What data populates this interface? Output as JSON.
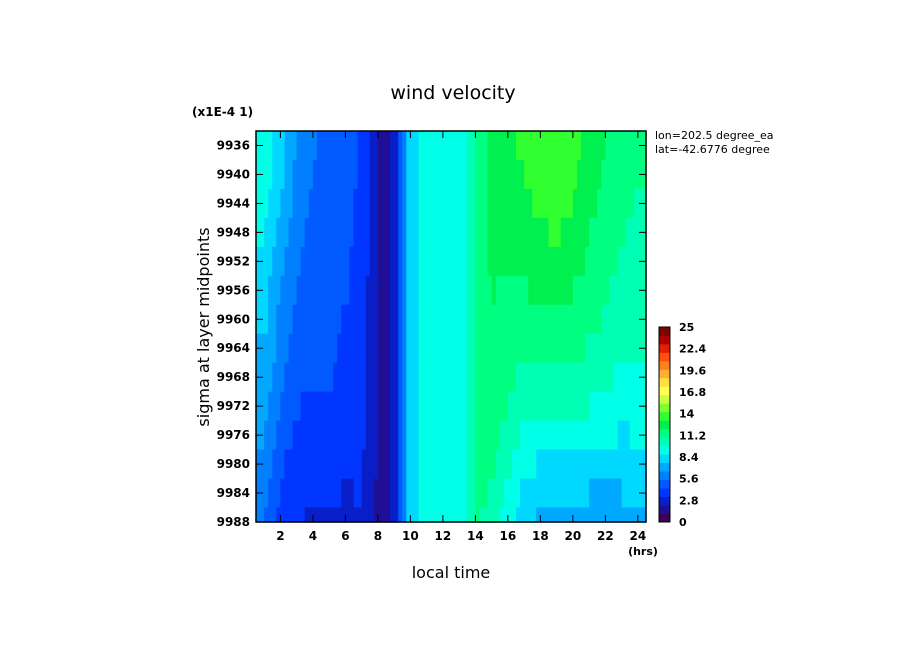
{
  "chart_data": {
    "type": "heatmap",
    "title": "wind velocity",
    "y_scale_note": "(x1E-4 1)",
    "xlabel": "local time",
    "x_unit": "(hrs)",
    "ylabel": "sigma at layer midpoints",
    "xlim": [
      0.5,
      24.5
    ],
    "ylim": [
      9988,
      9934
    ],
    "x_ticks": [
      2,
      4,
      6,
      8,
      10,
      12,
      14,
      16,
      18,
      20,
      22,
      24
    ],
    "y_ticks": [
      9936,
      9940,
      9944,
      9948,
      9952,
      9956,
      9960,
      9964,
      9968,
      9972,
      9976,
      9980,
      9984,
      9988
    ],
    "info": [
      "lon=202.5 degree_ea",
      "lat=-42.6776 degree"
    ],
    "colorbar": {
      "min": 0,
      "max": 25,
      "ticks": [
        "25",
        "22.4",
        "19.6",
        "16.8",
        "14",
        "11.2",
        "8.4",
        "5.6",
        "2.8",
        "0"
      ],
      "colors": [
        "#3b005a",
        "#1e0f96",
        "#0a1ec8",
        "#0036ff",
        "#005aff",
        "#0080ff",
        "#00a8ff",
        "#00d8ff",
        "#00ffe6",
        "#00ffb4",
        "#00ff80",
        "#00f050",
        "#30ff30",
        "#80ff30",
        "#c8ff40",
        "#ffff50",
        "#ffe040",
        "#ffb030",
        "#ff8020",
        "#ff5010",
        "#e02000",
        "#b00000",
        "#800000"
      ]
    },
    "grid": false,
    "x": [
      1,
      2,
      3,
      4,
      5,
      6,
      7,
      8,
      9,
      10,
      11,
      12,
      13,
      14,
      15,
      16,
      17,
      18,
      19,
      20,
      21,
      22,
      23,
      24
    ],
    "y": [
      9936,
      9940,
      9944,
      9948,
      9952,
      9956,
      9960,
      9964,
      9968,
      9972,
      9976,
      9980,
      9984,
      9988
    ],
    "z": [
      [
        9.5,
        8.0,
        6.5,
        5.5,
        5.0,
        4.6,
        4.2,
        2.0,
        2.2,
        8.5,
        9.0,
        9.0,
        9.0,
        11.0,
        12.5,
        12.8,
        13.2,
        13.6,
        14.0,
        13.4,
        12.6,
        12.0,
        11.6,
        11.2
      ],
      [
        9.3,
        7.8,
        6.3,
        5.4,
        5.0,
        4.6,
        4.2,
        2.0,
        2.2,
        8.5,
        9.0,
        9.0,
        9.0,
        11.0,
        12.5,
        12.6,
        13.0,
        13.4,
        13.8,
        13.2,
        12.4,
        11.8,
        11.4,
        11.0
      ],
      [
        9.0,
        7.5,
        6.0,
        5.3,
        4.9,
        4.5,
        4.2,
        2.0,
        2.2,
        8.5,
        9.0,
        9.0,
        9.0,
        11.0,
        12.4,
        12.4,
        12.8,
        13.2,
        13.5,
        13.0,
        12.2,
        11.6,
        11.2,
        10.8
      ],
      [
        8.7,
        7.2,
        5.8,
        5.2,
        4.9,
        4.5,
        4.1,
        2.0,
        2.2,
        8.5,
        9.0,
        9.0,
        9.0,
        11.0,
        12.3,
        12.2,
        12.5,
        12.9,
        13.2,
        12.7,
        12.0,
        11.4,
        11.0,
        10.6
      ],
      [
        8.4,
        6.9,
        5.6,
        5.1,
        4.8,
        4.4,
        4.1,
        2.0,
        2.2,
        8.5,
        9.0,
        9.0,
        9.0,
        11.0,
        12.2,
        12.0,
        12.2,
        12.5,
        12.8,
        12.4,
        11.8,
        11.2,
        10.8,
        10.4
      ],
      [
        8.1,
        6.6,
        5.4,
        5.0,
        4.7,
        4.4,
        4.0,
        2.0,
        2.2,
        8.5,
        9.0,
        9.0,
        9.0,
        11.0,
        12.0,
        11.8,
        11.9,
        12.1,
        12.3,
        12.0,
        11.5,
        11.0,
        10.6,
        10.2
      ],
      [
        7.8,
        6.3,
        5.2,
        4.9,
        4.6,
        4.3,
        4.0,
        2.0,
        2.2,
        8.5,
        9.0,
        9.0,
        9.0,
        11.0,
        11.9,
        11.6,
        11.5,
        11.6,
        11.8,
        11.6,
        11.2,
        10.8,
        10.4,
        10.0
      ],
      [
        7.5,
        6.0,
        5.0,
        4.8,
        4.5,
        4.2,
        3.9,
        2.0,
        2.2,
        8.5,
        9.0,
        9.0,
        9.0,
        11.0,
        11.8,
        11.4,
        11.1,
        11.1,
        11.2,
        11.1,
        10.8,
        10.5,
        10.1,
        9.8
      ],
      [
        7.2,
        5.7,
        4.7,
        4.5,
        4.4,
        4.2,
        3.9,
        2.0,
        2.2,
        8.5,
        9.0,
        9.0,
        9.0,
        11.0,
        11.6,
        11.2,
        10.6,
        10.5,
        10.6,
        10.6,
        10.4,
        10.0,
        9.6,
        9.5
      ],
      [
        6.9,
        5.3,
        4.4,
        4.2,
        4.1,
        4.0,
        3.8,
        2.0,
        2.2,
        8.5,
        9.0,
        9.0,
        9.0,
        11.0,
        11.4,
        10.8,
        10.0,
        9.9,
        10.0,
        10.0,
        9.8,
        9.5,
        9.1,
        9.2
      ],
      [
        6.6,
        5.0,
        4.1,
        3.8,
        3.6,
        3.5,
        3.6,
        2.0,
        2.2,
        8.5,
        9.0,
        9.0,
        9.0,
        11.0,
        11.2,
        10.4,
        9.5,
        9.2,
        9.3,
        9.3,
        9.1,
        8.9,
        8.6,
        8.8
      ],
      [
        6.2,
        4.6,
        3.8,
        3.5,
        3.8,
        3.5,
        3.4,
        2.0,
        2.2,
        8.5,
        9.0,
        9.0,
        9.0,
        11.0,
        11.0,
        10.0,
        9.0,
        8.6,
        8.6,
        8.5,
        8.3,
        8.2,
        8.2,
        8.3
      ],
      [
        5.9,
        4.3,
        3.6,
        3.3,
        3.6,
        3.2,
        3.3,
        2.0,
        2.2,
        8.5,
        9.0,
        9.0,
        9.0,
        11.0,
        10.8,
        9.6,
        8.5,
        8.0,
        7.9,
        7.8,
        7.6,
        7.5,
        7.6,
        7.8
      ],
      [
        5.5,
        4.0,
        3.4,
        3.1,
        3.2,
        3.1,
        3.2,
        2.0,
        2.2,
        8.5,
        9.0,
        9.0,
        9.0,
        11.0,
        10.6,
        9.2,
        8.0,
        7.4,
        7.2,
        7.0,
        6.9,
        6.8,
        7.0,
        7.2
      ]
    ]
  }
}
